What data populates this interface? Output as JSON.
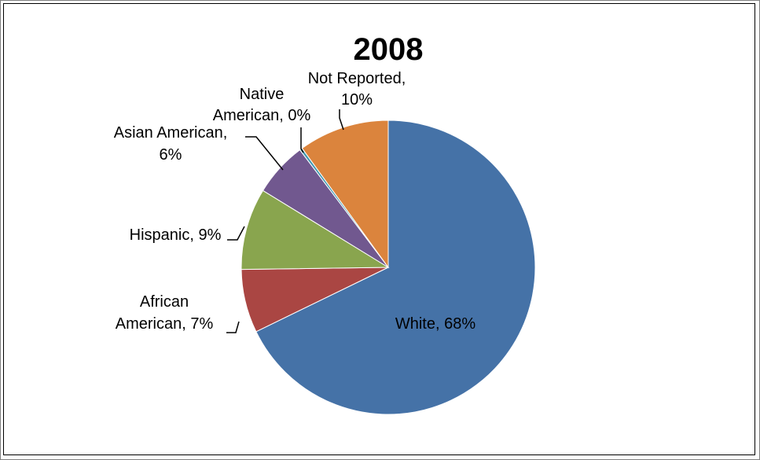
{
  "chart_data": {
    "type": "pie",
    "title": "2008",
    "start_angle_deg": 0,
    "direction": "clockwise",
    "slices": [
      {
        "label": "White, 68%",
        "lines": [
          "White, 68%"
        ],
        "value": 68,
        "color": "#4572a7"
      },
      {
        "label": "African American, 7%",
        "lines": [
          "African",
          "American, 7%"
        ],
        "value": 7,
        "color": "#aa4643"
      },
      {
        "label": "Hispanic, 9%",
        "lines": [
          "Hispanic, 9%"
        ],
        "value": 9,
        "color": "#89a54e"
      },
      {
        "label": "Asian American, 6%",
        "lines": [
          "Asian American,",
          "6%"
        ],
        "value": 6,
        "color": "#71588f"
      },
      {
        "label": "Native American, 0%",
        "lines": [
          "Native",
          "American, 0%"
        ],
        "value": 0.3,
        "color": "#4198af"
      },
      {
        "label": "Not Reported, 10%",
        "lines": [
          "Not Reported,",
          "10%"
        ],
        "value": 10,
        "color": "#db843d"
      }
    ]
  }
}
